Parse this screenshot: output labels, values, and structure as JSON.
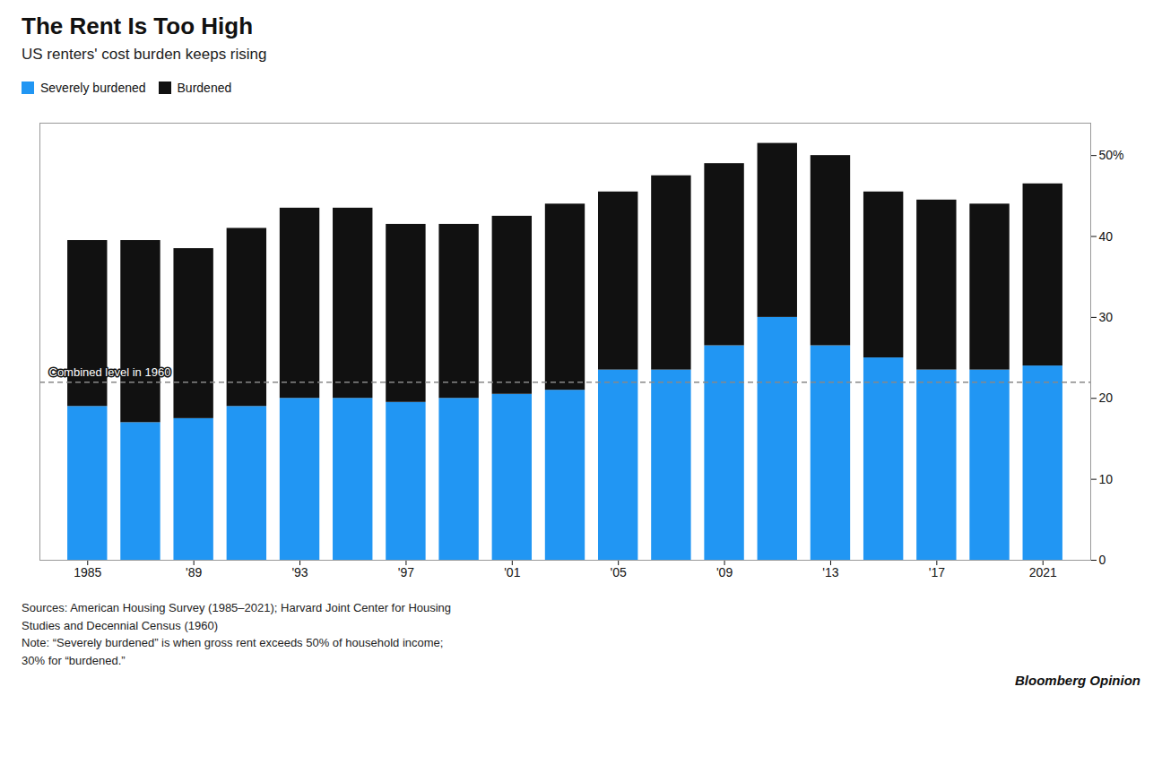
{
  "chart_data": {
    "type": "bar",
    "stacked": true,
    "title": "The Rent Is Too High",
    "subtitle": "US renters' cost burden keeps rising",
    "x": [
      1985,
      1987,
      1989,
      1991,
      1993,
      1995,
      1997,
      1999,
      2001,
      2003,
      2005,
      2007,
      2009,
      2011,
      2013,
      2015,
      2017,
      2019,
      2021
    ],
    "series": [
      {
        "name": "Severely burdened",
        "color": "#2196F3",
        "values": [
          19.0,
          17.0,
          17.5,
          19.0,
          20.0,
          20.0,
          19.5,
          20.0,
          20.5,
          21.0,
          23.5,
          23.5,
          26.5,
          30.0,
          26.5,
          25.0,
          23.5,
          23.5,
          24.0
        ]
      },
      {
        "name": "Burdened",
        "color": "#111111",
        "values": [
          20.5,
          22.5,
          21.0,
          22.0,
          23.5,
          23.5,
          22.0,
          21.5,
          22.0,
          23.0,
          22.0,
          24.0,
          22.5,
          21.5,
          23.5,
          20.5,
          21.0,
          20.5,
          22.5
        ]
      }
    ],
    "reference_lines": [
      {
        "y": 22.0,
        "label": "Combined level in 1960",
        "line_style": "dashed"
      }
    ],
    "xlim": [
      1983.2,
      2022.8
    ],
    "xticks": [
      1985,
      {
        "value": 1989,
        "label": "'89"
      },
      {
        "value": 1993,
        "label": "'93"
      },
      {
        "value": 1997,
        "label": "'97"
      },
      {
        "value": 2001,
        "label": "'01"
      },
      {
        "value": 2005,
        "label": "'05"
      },
      {
        "value": 2009,
        "label": "'09"
      },
      {
        "value": 2013,
        "label": "'13"
      },
      {
        "value": 2017,
        "label": "'17"
      },
      2021
    ],
    "ylim": [
      0,
      54
    ],
    "yticks": [
      0,
      10,
      20,
      30,
      40,
      {
        "value": 50,
        "label": "50%"
      }
    ],
    "grid": false,
    "legend": "top-left",
    "source": "Sources: American Housing Survey (1985–2021); Harvard Joint Center for Housing\nStudies and Decennial Census (1960)\nNote: “Severely burdened” is when gross rent exceeds 50% of household income;\n30% for “burdened.”",
    "credit": "Bloomberg Opinion"
  }
}
